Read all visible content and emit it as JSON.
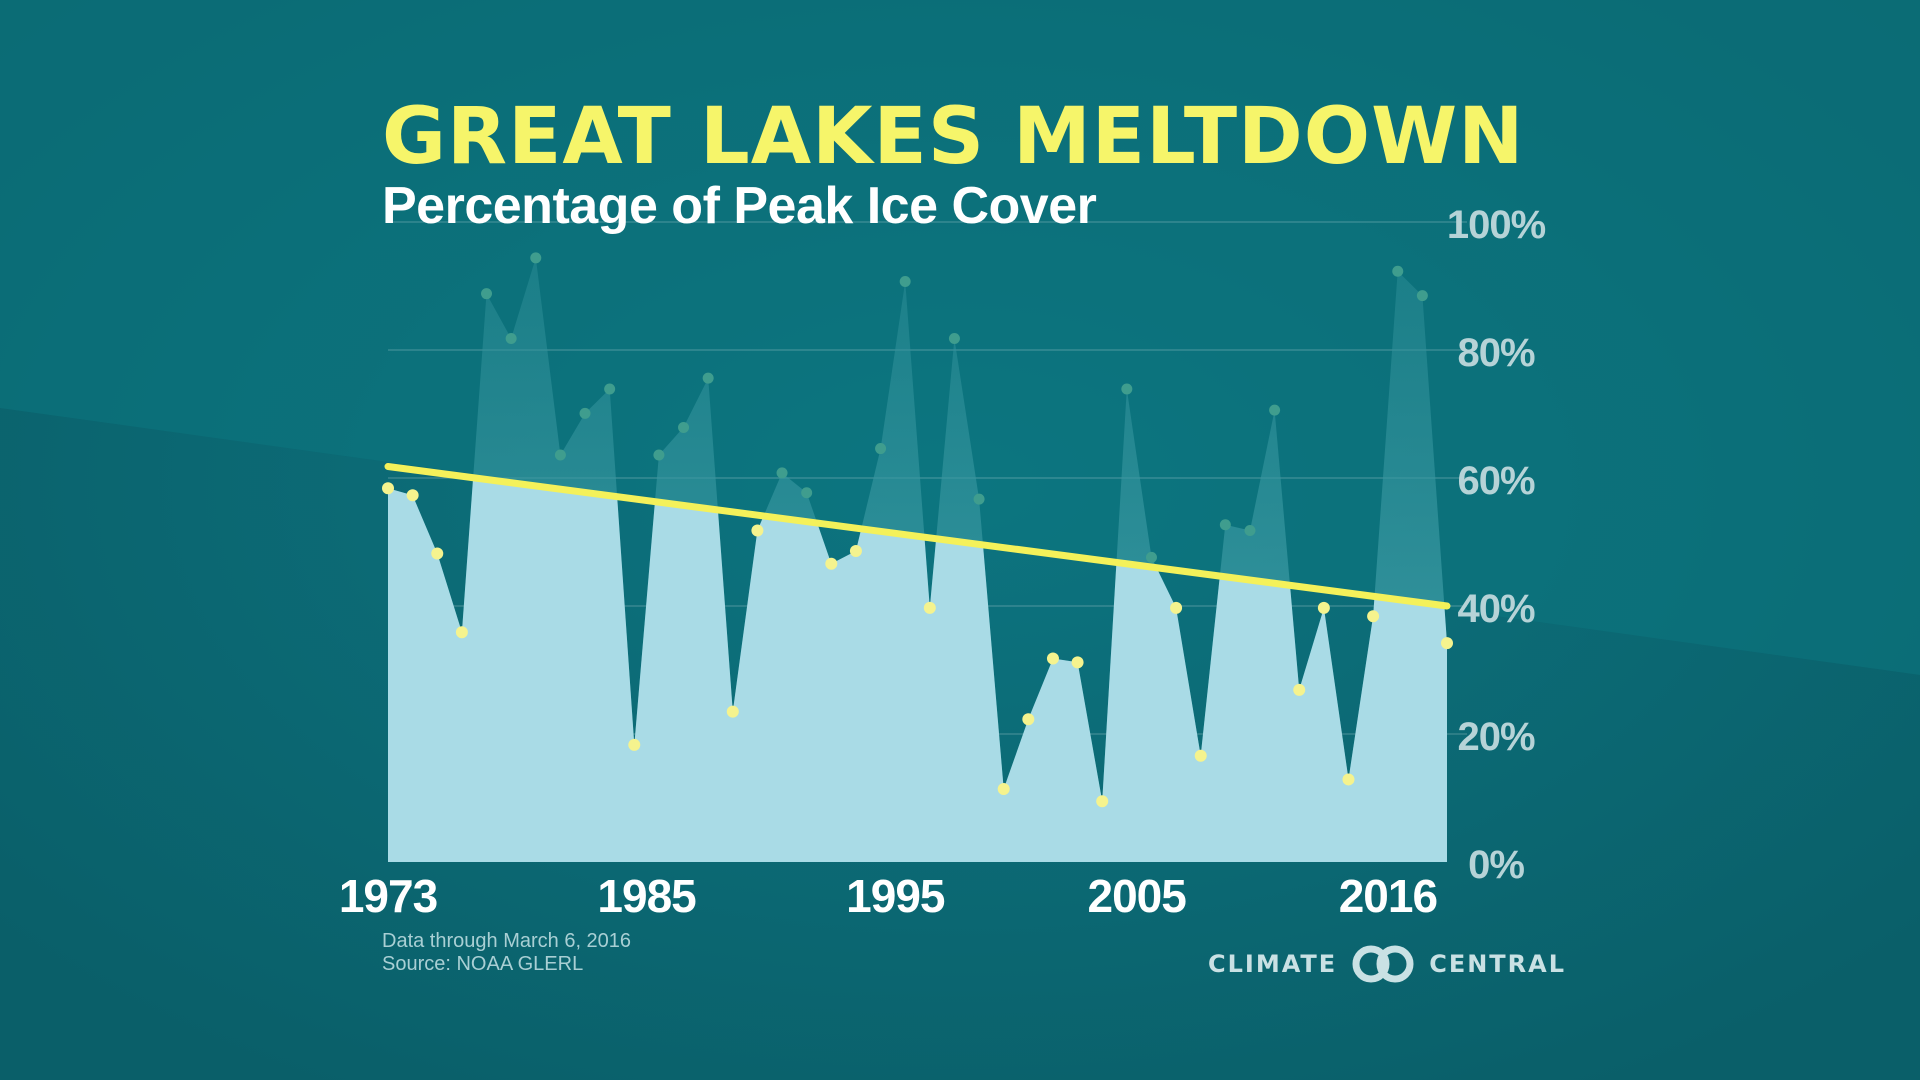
{
  "header": {
    "title": "GREAT LAKES MELTDOWN",
    "subtitle": "Percentage of Peak Ice Cover"
  },
  "footer": {
    "data_note": "Data through March 6, 2016",
    "source": "Source: NOAA GLERL",
    "logo_left": "CLIMATE",
    "logo_right": "CENTRAL"
  },
  "colors": {
    "background": "#0b6670",
    "title": "#f6f56a",
    "area_fill": "#a9dbe6",
    "trend_line": "#f4f15a",
    "tick_label_x": "#ffffff",
    "tick_label_y": "#b6d3d7"
  },
  "chart_data": {
    "type": "area",
    "title": "GREAT LAKES MELTDOWN",
    "subtitle": "Percentage of Peak Ice Cover",
    "x": [
      1973,
      1974,
      1975,
      1976,
      1977,
      1978,
      1979,
      1980,
      1981,
      1982,
      1983,
      1984,
      1985,
      1986,
      1987,
      1988,
      1989,
      1990,
      1991,
      1992,
      1993,
      1994,
      1995,
      1996,
      1997,
      1998,
      1999,
      2000,
      2001,
      2002,
      2003,
      2004,
      2005,
      2006,
      2007,
      2008,
      2009,
      2010,
      2011,
      2012,
      2013,
      2014,
      2015,
      2016
    ],
    "series": [
      {
        "values": [
          58.4,
          57.3,
          48.2,
          35.9,
          88.8,
          81.8,
          94.4,
          63.6,
          70.1,
          73.9,
          18.3,
          63.6,
          67.9,
          75.6,
          23.5,
          51.8,
          60.8,
          57.7,
          46.6,
          48.6,
          64.6,
          90.7,
          39.7,
          81.8,
          56.7,
          11.4,
          22.3,
          31.8,
          31.2,
          9.5,
          73.9,
          47.6,
          39.7,
          16.6,
          52.7,
          51.8,
          70.6,
          26.9,
          39.7,
          12.9,
          38.4,
          92.3,
          88.5,
          34.2
        ]
      }
    ],
    "trend": {
      "start_year": 1973,
      "start_value": 61.8,
      "end_year": 2016,
      "end_value": 40.0
    },
    "xticks": [
      "1973",
      "1985",
      "1995",
      "2005",
      "2016"
    ],
    "xtick_years": [
      1973,
      1983.5,
      1993.6,
      2003.4,
      2013.6
    ],
    "yticks": [
      "0%",
      "20%",
      "40%",
      "60%",
      "80%",
      "100%"
    ],
    "ytick_values": [
      0,
      20,
      40,
      60,
      80,
      100
    ],
    "ylim": [
      0,
      100
    ],
    "xlabel": "",
    "ylabel": "",
    "grid": true,
    "legend": "none"
  }
}
